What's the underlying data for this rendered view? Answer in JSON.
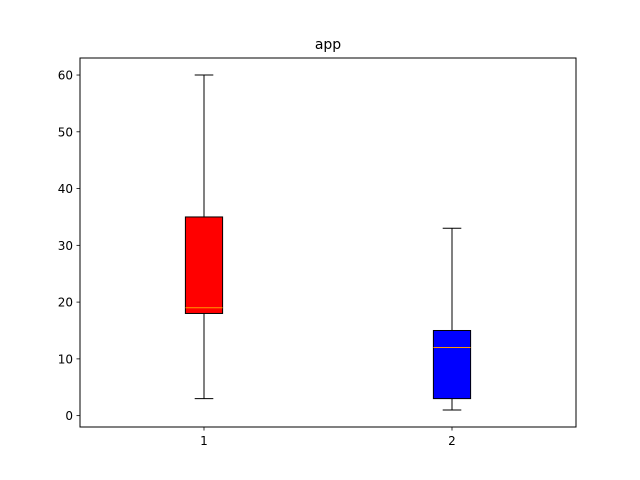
{
  "chart_data": {
    "type": "box",
    "title": "app",
    "xlabel": "",
    "ylabel": "",
    "categories": [
      "1",
      "2"
    ],
    "ylim": [
      -2,
      63
    ],
    "yticks": [
      0,
      10,
      20,
      30,
      40,
      50,
      60
    ],
    "grid": false,
    "boxes": [
      {
        "category": "1",
        "whisker_low": 3,
        "q1": 18,
        "median": 19,
        "q3": 35,
        "whisker_high": 60,
        "fill_color": "#ff0000",
        "median_color": "#ff9900"
      },
      {
        "category": "2",
        "whisker_low": 1,
        "q1": 3,
        "median": 12,
        "q3": 15,
        "whisker_high": 33,
        "fill_color": "#0000ff",
        "median_color": "#ff9900"
      }
    ]
  }
}
